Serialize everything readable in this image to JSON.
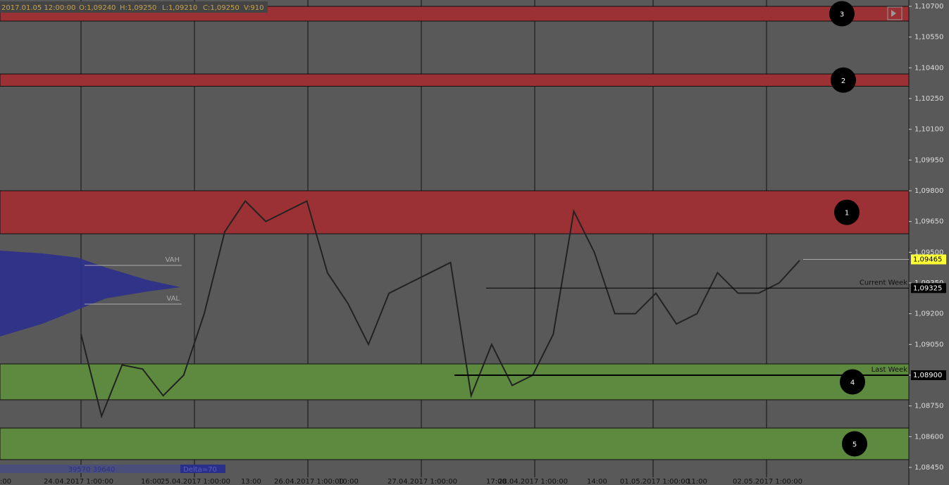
{
  "chart_data": {
    "type": "price-levels",
    "header": [
      "2017.01.05 12:00:00",
      "O:1,09240",
      "H:1,09250",
      "L:1,09210",
      "C:1,09250",
      "V:910"
    ],
    "ylim": [
      1.0845,
      1.107
    ],
    "yticks": [
      {
        "value": 1.107,
        "label": "1,10700"
      },
      {
        "value": 1.1055,
        "label": "1,10550"
      },
      {
        "value": 1.104,
        "label": "1,10400"
      },
      {
        "value": 1.1025,
        "label": "1,10250"
      },
      {
        "value": 1.101,
        "label": "1,10100"
      },
      {
        "value": 1.0995,
        "label": "1,09950"
      },
      {
        "value": 1.098,
        "label": "1,09800"
      },
      {
        "value": 1.0965,
        "label": "1,09650"
      },
      {
        "value": 1.095,
        "label": "1,09500"
      },
      {
        "value": 1.0935,
        "label": "1,09350"
      },
      {
        "value": 1.092,
        "label": "1,09200"
      },
      {
        "value": 1.0905,
        "label": "1,09050"
      },
      {
        "value": 1.089,
        "label": "1,08900"
      },
      {
        "value": 1.0875,
        "label": "1,08750"
      },
      {
        "value": 1.086,
        "label": "1,08600"
      },
      {
        "value": 1.0845,
        "label": "1,08450"
      }
    ],
    "x_labels": [
      ":00",
      "24.04.2017 1:00:00",
      "16:00",
      "25.04.2017 1:00:00",
      "13:00",
      "26.04.2017 1:00:00",
      "10:00",
      "27.04.2017 1:00:00",
      "17:00",
      "28.04.2017 1:00:00",
      "14:00",
      "01.05.2017 1:00:00",
      "11:00",
      "02.05.2017 1:00:00"
    ],
    "zones": [
      {
        "label": "3",
        "top": 1.107,
        "bottom": 1.10628,
        "color": "#9b3135"
      },
      {
        "label": "2",
        "top": 1.1037,
        "bottom": 1.1031,
        "color": "#9b3135"
      },
      {
        "label": "1",
        "top": 1.098,
        "bottom": 1.0959,
        "color": "#9b3135"
      },
      {
        "label": "4",
        "top": 1.08955,
        "bottom": 1.0878,
        "color": "#5e8a3f"
      },
      {
        "label": "5",
        "top": 1.08642,
        "bottom": 1.08488,
        "color": "#5e8a3f"
      }
    ],
    "levels": [
      {
        "name": "Current Week",
        "value": 1.09325,
        "value_label": "1,09325"
      },
      {
        "name": "Last Week",
        "value": 1.089,
        "value_label": "1,08900"
      }
    ],
    "last_price": {
      "value": 1.09465,
      "value_label": "1,09465"
    },
    "values": [
      1.091,
      1.087,
      1.0895,
      1.0893,
      1.088,
      1.089,
      1.092,
      1.096,
      1.0975,
      1.0965,
      1.097,
      1.0975,
      1.094,
      1.0925,
      1.0905,
      1.093,
      1.0935,
      1.094,
      1.0945,
      1.088,
      1.0905,
      1.0885,
      1.089,
      1.091,
      1.097,
      1.095,
      1.092,
      1.092,
      1.093,
      1.0915,
      1.092,
      1.094,
      1.093,
      1.093,
      1.0935,
      1.0946
    ],
    "profile": {
      "vah": "VAH",
      "val": "VAL",
      "volumes": "39570 39640",
      "delta": "Delta=70"
    }
  }
}
